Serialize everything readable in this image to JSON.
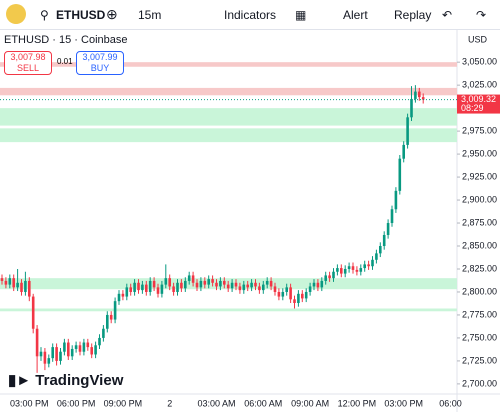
{
  "toolbar": {
    "symbol": "ETHUSD",
    "interval": "15m",
    "indicators": "Indicators",
    "alert": "Alert",
    "replay": "Replay"
  },
  "legend": {
    "title": "ETHUSD · 15 · Coinbase",
    "sell_price": "3,007.98",
    "sell": "SELL",
    "spread": "0.01",
    "buy_price": "3,007.99",
    "buy": "BUY"
  },
  "currency": "USD",
  "logo": "TradingView",
  "chart_data": {
    "type": "candlestick",
    "categories": [
      null,
      null,
      null,
      null,
      null,
      null,
      null,
      "03:00 PM",
      null,
      null,
      null,
      null,
      null,
      null,
      null,
      null,
      null,
      null,
      null,
      "06:00 PM",
      null,
      null,
      null,
      null,
      null,
      null,
      null,
      null,
      null,
      null,
      null,
      "09:00 PM",
      null,
      null,
      null,
      null,
      null,
      null,
      null,
      null,
      null,
      null,
      null,
      "2",
      null,
      null,
      null,
      null,
      null,
      null,
      null,
      null,
      null,
      null,
      null,
      "03:00 AM",
      null,
      null,
      null,
      null,
      null,
      null,
      null,
      null,
      null,
      null,
      null,
      "06:00 AM",
      null,
      null,
      null,
      null,
      null,
      null,
      null,
      null,
      null,
      null,
      null,
      "09:00 AM",
      null,
      null,
      null,
      null,
      null,
      null,
      null,
      null,
      null,
      null,
      null,
      "12:00 PM",
      null,
      null,
      null,
      null,
      null,
      null,
      null,
      null,
      null,
      null,
      null,
      "03:00 PM",
      null,
      null,
      null,
      null,
      null,
      null,
      null,
      null,
      null,
      null,
      null,
      "06:00"
    ],
    "open": [
      2815,
      2812,
      2808,
      2815,
      2805,
      2810,
      2800,
      2812,
      2795,
      2760,
      2730,
      2735,
      2722,
      2728,
      2740,
      2725,
      2735,
      2745,
      2730,
      2738,
      2742,
      2735,
      2745,
      2740,
      2732,
      2742,
      2750,
      2760,
      2775,
      2770,
      2790,
      2798,
      2795,
      2805,
      2800,
      2810,
      2802,
      2808,
      2800,
      2812,
      2805,
      2798,
      2808,
      2815,
      2806,
      2800,
      2810,
      2804,
      2812,
      2818,
      2810,
      2805,
      2812,
      2808,
      2814,
      2810,
      2806,
      2812,
      2808,
      2804,
      2810,
      2806,
      2802,
      2808,
      2805,
      2810,
      2806,
      2802,
      2808,
      2812,
      2806,
      2800,
      2795,
      2800,
      2805,
      2792,
      2788,
      2798,
      2793,
      2800,
      2806,
      2810,
      2805,
      2812,
      2818,
      2815,
      2822,
      2826,
      2820,
      2825,
      2828,
      2824,
      2822,
      2826,
      2830,
      2828,
      2835,
      2842,
      2850,
      2862,
      2875,
      2890,
      2910,
      2945,
      2960,
      2990,
      3010,
      3018,
      3012,
      null,
      null,
      null,
      null,
      null,
      null,
      null
    ],
    "high": [
      2819,
      2816,
      2819,
      2819,
      2825,
      2814,
      2822,
      2816,
      2798,
      2764,
      2740,
      2739,
      2732,
      2744,
      2744,
      2739,
      2749,
      2749,
      2742,
      2746,
      2746,
      2749,
      2749,
      2744,
      2746,
      2754,
      2764,
      2779,
      2779,
      2794,
      2802,
      2802,
      2809,
      2809,
      2814,
      2814,
      2812,
      2812,
      2816,
      2816,
      2809,
      2812,
      2830,
      2819,
      2810,
      2814,
      2814,
      2816,
      2822,
      2822,
      2814,
      2816,
      2816,
      2818,
      2818,
      2814,
      2816,
      2816,
      2812,
      2814,
      2814,
      2810,
      2812,
      2812,
      2814,
      2814,
      2810,
      2812,
      2816,
      2816,
      2810,
      2804,
      2804,
      2809,
      2809,
      2796,
      2802,
      2802,
      2804,
      2810,
      2814,
      2814,
      2816,
      2822,
      2822,
      2826,
      2830,
      2830,
      2829,
      2832,
      2832,
      2828,
      2830,
      2834,
      2834,
      2839,
      2846,
      2854,
      2866,
      2879,
      2894,
      2914,
      2949,
      2964,
      2994,
      3024,
      3025,
      3022,
      3016,
      null,
      null,
      null,
      null,
      null,
      null,
      null
    ],
    "low": [
      2808,
      2804,
      2804,
      2801,
      2801,
      2796,
      2796,
      2790,
      2755,
      2712,
      2725,
      2715,
      2718,
      2724,
      2720,
      2721,
      2731,
      2726,
      2726,
      2734,
      2731,
      2731,
      2736,
      2728,
      2728,
      2738,
      2746,
      2756,
      2766,
      2766,
      2786,
      2791,
      2791,
      2796,
      2796,
      2798,
      2798,
      2796,
      2796,
      2801,
      2794,
      2794,
      2804,
      2802,
      2796,
      2796,
      2800,
      2800,
      2808,
      2806,
      2801,
      2801,
      2804,
      2804,
      2806,
      2802,
      2802,
      2804,
      2800,
      2800,
      2802,
      2798,
      2798,
      2801,
      2801,
      2802,
      2798,
      2798,
      2804,
      2802,
      2796,
      2791,
      2791,
      2796,
      2788,
      2782,
      2784,
      2789,
      2789,
      2796,
      2802,
      2801,
      2801,
      2808,
      2811,
      2811,
      2818,
      2816,
      2816,
      2821,
      2820,
      2818,
      2818,
      2822,
      2824,
      2824,
      2831,
      2838,
      2846,
      2858,
      2871,
      2886,
      2906,
      2941,
      2956,
      2986,
      3006,
      3008,
      3005,
      null,
      null,
      null,
      null,
      null,
      null,
      null
    ],
    "close": [
      2812,
      2808,
      2815,
      2805,
      2810,
      2800,
      2812,
      2795,
      2760,
      2730,
      2735,
      2722,
      2728,
      2740,
      2725,
      2735,
      2745,
      2730,
      2738,
      2742,
      2735,
      2745,
      2740,
      2732,
      2742,
      2750,
      2760,
      2775,
      2770,
      2790,
      2798,
      2795,
      2805,
      2800,
      2810,
      2802,
      2808,
      2800,
      2812,
      2805,
      2798,
      2808,
      2815,
      2806,
      2800,
      2810,
      2804,
      2812,
      2818,
      2810,
      2805,
      2812,
      2808,
      2814,
      2810,
      2806,
      2812,
      2808,
      2804,
      2810,
      2806,
      2802,
      2808,
      2805,
      2810,
      2806,
      2802,
      2808,
      2812,
      2806,
      2800,
      2795,
      2800,
      2805,
      2792,
      2788,
      2798,
      2793,
      2800,
      2806,
      2810,
      2805,
      2812,
      2818,
      2815,
      2822,
      2826,
      2820,
      2825,
      2828,
      2824,
      2822,
      2826,
      2830,
      2828,
      2835,
      2842,
      2850,
      2862,
      2875,
      2890,
      2910,
      2945,
      2960,
      2990,
      3010,
      3018,
      3012,
      3009.32,
      null,
      null,
      null,
      null,
      null,
      null,
      null
    ],
    "up_color": "#089981",
    "down_color": "#f23645",
    "ylim": [
      2689,
      3085
    ],
    "yticks": [
      {
        "value": 3050,
        "label": "3,050.00"
      },
      {
        "value": 3025,
        "label": "3,025.00"
      },
      {
        "value": 3000,
        "label": "3,000.00"
      },
      {
        "value": 2975,
        "label": "2,975.00"
      },
      {
        "value": 2950,
        "label": "2,950.00"
      },
      {
        "value": 2925,
        "label": "2,925.00"
      },
      {
        "value": 2900,
        "label": "2,900.00"
      },
      {
        "value": 2875,
        "label": "2,875.00"
      },
      {
        "value": 2850,
        "label": "2,850.00"
      },
      {
        "value": 2825,
        "label": "2,825.00"
      },
      {
        "value": 2800,
        "label": "2,800.00"
      },
      {
        "value": 2775,
        "label": "2,775.00"
      },
      {
        "value": 2750,
        "label": "2,750.00"
      },
      {
        "value": 2725,
        "label": "2,725.00"
      },
      {
        "value": 2700,
        "label": "2,700.00"
      }
    ],
    "last_price_label": "3,009.32",
    "countdown": "08:29",
    "zones": [
      {
        "from": 3045,
        "to": 3050,
        "color": "#f7c9c9"
      },
      {
        "from": 3014,
        "to": 3022,
        "color": "#f7c9c9"
      },
      {
        "from": 2981,
        "to": 3000,
        "color": "#c9f5d9"
      },
      {
        "from": 2963,
        "to": 2978,
        "color": "#c9f5d9"
      },
      {
        "from": 2803,
        "to": 2815,
        "color": "#c9f5d9"
      },
      {
        "from": 2779,
        "to": 2782,
        "color": "#c9f5d9"
      }
    ]
  }
}
